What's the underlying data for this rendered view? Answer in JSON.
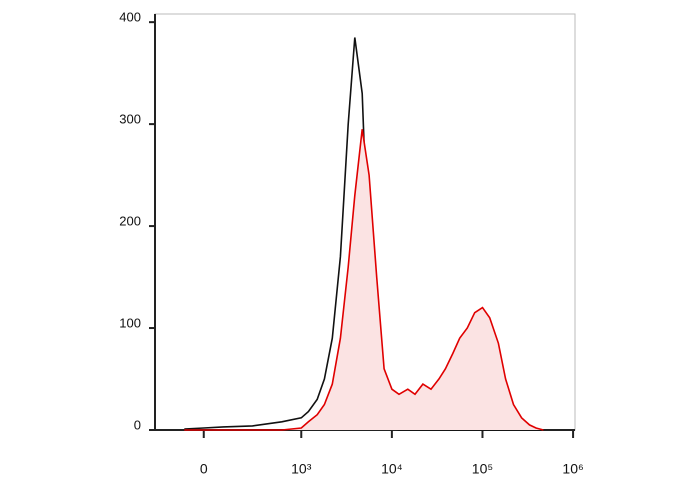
{
  "chart_data": {
    "type": "line",
    "x": [
      -200,
      0,
      200,
      500,
      800,
      1000,
      1200,
      1500,
      1800,
      2200,
      2700,
      3300,
      3900,
      4700,
      5600,
      6800,
      8200,
      10000,
      12000,
      15000,
      18000,
      22000,
      27000,
      33000,
      39000,
      47000,
      56000,
      68000,
      82000,
      100000,
      120000,
      150000,
      180000,
      220000,
      270000,
      330000,
      390000,
      470000
    ],
    "series": [
      {
        "color": "#111111",
        "fill": false,
        "values": [
          1,
          2,
          3,
          4,
          8,
          12,
          18,
          30,
          50,
          90,
          170,
          300,
          385,
          330,
          150,
          40,
          8,
          2,
          0,
          0,
          0,
          0,
          0,
          0,
          0,
          0,
          0,
          0,
          0,
          0,
          0,
          0,
          0,
          0,
          0,
          0,
          0,
          0
        ]
      },
      {
        "color": "#e00000",
        "fill": "#fbe3e3",
        "values": [
          0,
          0,
          0,
          0,
          0,
          2,
          8,
          15,
          25,
          45,
          90,
          160,
          230,
          295,
          250,
          150,
          60,
          40,
          35,
          40,
          35,
          45,
          40,
          50,
          60,
          75,
          90,
          100,
          115,
          120,
          110,
          85,
          50,
          25,
          12,
          5,
          2,
          0
        ]
      }
    ],
    "xscale": "biexponential",
    "xlim": [
      -500,
      1050000
    ],
    "xticks": [
      0,
      {
        "value": 1000,
        "label": "10³"
      },
      {
        "value": 10000,
        "label": "10⁴"
      },
      {
        "value": 100000,
        "label": "10⁵"
      },
      {
        "value": 1000000,
        "label": "10⁶"
      }
    ],
    "ylim": [
      0,
      408
    ],
    "yticks": [
      0,
      100,
      200,
      300,
      400
    ]
  }
}
